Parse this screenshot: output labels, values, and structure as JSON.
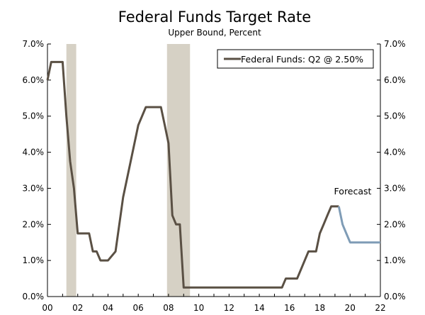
{
  "chart_data": {
    "type": "line",
    "title": "Federal Funds Target Rate",
    "subtitle": "Upper Bound, Percent",
    "xlabel": "",
    "ylabel": "",
    "xlim": [
      2000,
      2022
    ],
    "ylim": [
      0,
      7
    ],
    "x_ticks": [
      {
        "x": 2000,
        "label": "00"
      },
      {
        "x": 2002,
        "label": "02"
      },
      {
        "x": 2004,
        "label": "04"
      },
      {
        "x": 2006,
        "label": "06"
      },
      {
        "x": 2008,
        "label": "08"
      },
      {
        "x": 2010,
        "label": "10"
      },
      {
        "x": 2012,
        "label": "12"
      },
      {
        "x": 2014,
        "label": "14"
      },
      {
        "x": 2016,
        "label": "16"
      },
      {
        "x": 2018,
        "label": "18"
      },
      {
        "x": 2020,
        "label": "20"
      },
      {
        "x": 2022,
        "label": "22"
      }
    ],
    "y_ticks": [
      {
        "y": 0,
        "label": "0.0%"
      },
      {
        "y": 1,
        "label": "1.0%"
      },
      {
        "y": 2,
        "label": "2.0%"
      },
      {
        "y": 3,
        "label": "3.0%"
      },
      {
        "y": 4,
        "label": "4.0%"
      },
      {
        "y": 5,
        "label": "5.0%"
      },
      {
        "y": 6,
        "label": "6.0%"
      },
      {
        "y": 7,
        "label": "7.0%"
      }
    ],
    "recessions": [
      {
        "start": 2001.25,
        "end": 2001.9
      },
      {
        "start": 2007.9,
        "end": 2009.42
      }
    ],
    "legend": {
      "label": "Federal Funds: Q2 @ 2.50%",
      "placement": "top-right"
    },
    "annotations": [
      {
        "text": "Forecast",
        "x": 2019.0,
        "y": 2.8
      }
    ],
    "colors": {
      "actual": "#5a5044",
      "forecast": "#7f9cb6",
      "recession": "#d6d1c5"
    },
    "series": [
      {
        "name": "Federal Funds",
        "x": [
          2000.0,
          2000.25,
          2000.5,
          2000.75,
          2001.0,
          2001.25,
          2001.5,
          2001.75,
          2002.0,
          2002.75,
          2003.0,
          2003.25,
          2003.5,
          2004.0,
          2004.5,
          2005.0,
          2005.5,
          2006.0,
          2006.5,
          2007.0,
          2007.5,
          2007.75,
          2008.0,
          2008.25,
          2008.5,
          2008.75,
          2009.0,
          2012.0,
          2015.5,
          2015.75,
          2016.5,
          2017.0,
          2017.25,
          2017.75,
          2018.0,
          2018.25,
          2018.5,
          2018.75,
          2019.0,
          2019.25
        ],
        "values": [
          6.0,
          6.5,
          6.5,
          6.5,
          6.5,
          5.0,
          3.75,
          3.0,
          1.75,
          1.75,
          1.25,
          1.25,
          1.0,
          1.0,
          1.25,
          2.75,
          3.75,
          4.75,
          5.25,
          5.25,
          5.25,
          4.75,
          4.25,
          2.25,
          2.0,
          2.0,
          0.25,
          0.25,
          0.25,
          0.5,
          0.5,
          1.0,
          1.25,
          1.25,
          1.75,
          2.0,
          2.25,
          2.5,
          2.5,
          2.5
        ]
      },
      {
        "name": "Forecast",
        "x": [
          2019.25,
          2019.5,
          2019.75,
          2020.0,
          2020.5,
          2021.0,
          2021.5,
          2022.0
        ],
        "values": [
          2.5,
          2.0,
          1.75,
          1.5,
          1.5,
          1.5,
          1.5,
          1.5
        ]
      }
    ]
  }
}
